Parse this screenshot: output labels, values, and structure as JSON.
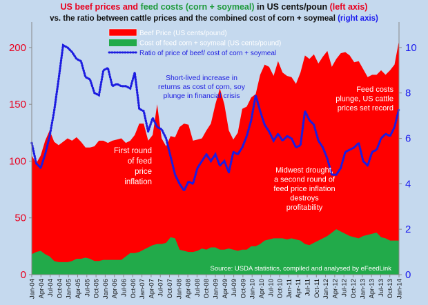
{
  "title": {
    "part1_red": "US beef prices and ",
    "part2_green": "feed costs (corn + soymeal)",
    "part3_black": " in US cents/poun ",
    "part4_red": "(left axis)"
  },
  "subtitle": {
    "part1_black": "vs. the ratio between cattle prices and the combined cost of corn + soymeal ",
    "part2_blue": "(right axis)"
  },
  "colors": {
    "background": "#c5d9ee",
    "beef": "#ff0000",
    "feed": "#22aa4a",
    "ratio": "#1c1ce0",
    "axis_left": "#e8001e",
    "axis_right": "#1a1aee"
  },
  "chart_data": {
    "type": "area",
    "x_tick_labels": [
      "Jan-04",
      "Apr-04",
      "Jul-04",
      "Oct-04",
      "Jan-05",
      "Apr-05",
      "Jul-05",
      "Oct-05",
      "Jan-06",
      "Apr-06",
      "Jul-06",
      "Oct-06",
      "Jan-07",
      "Apr-07",
      "Jul-07",
      "Oct-07",
      "Jan-08",
      "Apr-08",
      "Jul-08",
      "Oct-08",
      "Jan-09",
      "Apr-09",
      "Jul-09",
      "Oct-09",
      "Jan-10",
      "Apr-10",
      "Jul-10",
      "Oct-10",
      "Jan-11",
      "Apr-11",
      "Jul-11",
      "Oct-11",
      "Jan-12",
      "Apr-12",
      "Jul-12",
      "Oct-12",
      "Jan-13",
      "Apr-13",
      "Jul-13",
      "Oct-13",
      "Jan-14"
    ],
    "y_left": {
      "min": 0,
      "max": 220,
      "ticks": [
        0,
        50,
        100,
        150,
        200
      ]
    },
    "y_right": {
      "min": 0,
      "max": 11,
      "ticks": [
        0,
        2,
        4,
        6,
        8,
        10
      ]
    },
    "legend": {
      "position": "top-left",
      "entries": [
        "Beef Price (US cents/pound)",
        "Cost of feed corn + soymeal (US cents/pound)",
        "Ratio of price of beef/ cost of corn + soymeal"
      ]
    },
    "series": [
      {
        "name": "Beef Price (US cents/pound)",
        "axis": "left",
        "style": "area",
        "values": [
          105,
          98,
          105,
          118,
          127,
          117,
          114,
          117,
          120,
          118,
          121,
          117,
          112,
          112,
          113,
          118,
          118,
          116,
          118,
          119,
          120,
          116,
          118,
          123,
          133,
          133,
          118,
          123,
          150,
          120,
          113,
          122,
          121,
          130,
          133,
          132,
          118,
          119,
          120,
          127,
          133,
          150,
          164,
          150,
          127,
          119,
          125,
          146,
          148,
          156,
          159,
          176,
          185,
          183,
          175,
          188,
          178,
          175,
          174,
          168,
          178,
          193,
          190,
          194,
          186,
          192,
          197,
          183,
          190,
          195,
          196,
          193,
          187,
          188,
          181,
          174,
          176,
          176,
          180,
          176,
          180,
          185,
          206
        ]
      },
      {
        "name": "Cost of feed corn + soymeal (US cents/pound)",
        "axis": "left",
        "style": "area",
        "values": [
          18,
          20,
          21,
          18,
          16,
          12,
          11,
          11,
          11,
          12,
          14,
          14,
          15,
          14,
          12,
          12,
          13,
          13,
          13,
          13,
          13,
          16,
          19,
          19,
          20,
          22,
          24,
          26,
          27,
          27,
          28,
          33,
          32,
          22,
          21,
          20,
          20,
          21,
          23,
          22,
          24,
          24,
          22,
          22,
          23,
          22,
          21,
          22,
          22,
          25,
          25,
          27,
          30,
          31,
          32,
          32,
          32,
          31,
          32,
          31,
          30,
          27,
          26,
          28,
          30,
          32,
          34,
          37,
          40,
          38,
          36,
          34,
          33,
          32,
          34,
          35,
          36,
          37,
          33,
          32,
          30,
          30,
          30
        ]
      },
      {
        "name": "Ratio of price of beef/ cost of corn + soymeal",
        "axis": "right",
        "style": "dotted-line",
        "values": [
          5.8,
          4.9,
          4.7,
          5.3,
          6.1,
          7.2,
          8.6,
          10.1,
          10.0,
          9.8,
          9.5,
          9.4,
          8.7,
          8.6,
          8.0,
          7.9,
          9.0,
          9.1,
          8.3,
          8.4,
          8.3,
          8.3,
          8.2,
          8.9,
          7.3,
          7.2,
          6.3,
          6.9,
          6.5,
          6.4,
          6.0,
          5.2,
          4.4,
          4.0,
          3.7,
          4.1,
          4.0,
          4.7,
          5.0,
          5.3,
          5.0,
          5.3,
          4.8,
          5.0,
          4.5,
          5.4,
          5.3,
          5.6,
          6.1,
          6.8,
          7.9,
          7.2,
          6.6,
          6.3,
          5.9,
          6.2,
          5.9,
          6.1,
          6.0,
          5.6,
          5.7,
          7.2,
          6.8,
          6.6,
          5.9,
          5.6,
          5.1,
          4.4,
          4.4,
          4.7,
          5.4,
          5.5,
          5.6,
          5.8,
          5.0,
          4.8,
          5.4,
          5.5,
          6.0,
          6.2,
          6.1,
          6.5,
          7.3
        ]
      }
    ],
    "annotations": [
      {
        "id": "feed-price-inflation",
        "color": "white",
        "lines": [
          "First round",
          "of feed",
          "price",
          "inflation"
        ]
      },
      {
        "id": "short-lived-increase",
        "color": "blue",
        "lines": [
          "Short-lived increase in",
          "returns as cost of corn, soy",
          "plunge in financial crisis"
        ]
      },
      {
        "id": "midwest-drought",
        "color": "white",
        "lines": [
          "Midwest drought,",
          "a second round of",
          "feed price inflation",
          "destroys",
          "profitability"
        ]
      },
      {
        "id": "feed-costs-plunge",
        "color": "white",
        "lines": [
          "Feed costs",
          "plunge, US cattle",
          "prices set record"
        ]
      },
      {
        "id": "source",
        "color": "white",
        "lines": [
          "Source: USDA statistics, compiled and analysed by eFeedLink"
        ]
      }
    ]
  }
}
